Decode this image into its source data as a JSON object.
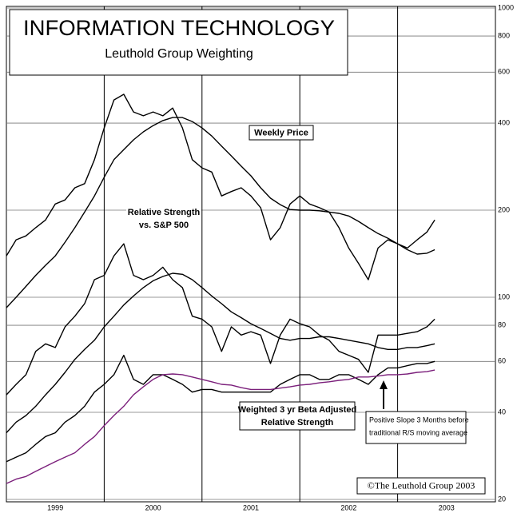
{
  "chart_data": {
    "type": "line",
    "title": "INFORMATION TECHNOLOGY",
    "subtitle": "Leuthold Group Weighting",
    "annotations": [
      {
        "lines": [
          "Weekly Price"
        ]
      },
      {
        "lines": [
          "Relative Strength",
          "vs. S&P 500"
        ]
      },
      {
        "lines": [
          "Weighted 3 yr Beta Adjusted",
          "Relative Strength"
        ]
      },
      {
        "lines": [
          "Positive Slope 3 Months before",
          "traditional R/S moving average"
        ]
      },
      {
        "lines": [
          "©The Leuthold Group 2003"
        ]
      }
    ],
    "log_scale": true,
    "grid": true,
    "xlim": [
      1999,
      2004
    ],
    "xticks": [
      2000,
      2001,
      2002,
      2003
    ],
    "year_labels": [
      "1999",
      "2000",
      "2001",
      "2002",
      "2003"
    ],
    "ylim": [
      20,
      1000
    ],
    "yticks": [
      20,
      40,
      60,
      80,
      100,
      200,
      400,
      600,
      800,
      1000
    ],
    "x": [
      1999.0,
      1999.1,
      1999.2,
      1999.3,
      1999.4,
      1999.5,
      1999.6,
      1999.7,
      1999.8,
      1999.9,
      2000.0,
      2000.1,
      2000.2,
      2000.3,
      2000.4,
      2000.5,
      2000.6,
      2000.7,
      2000.8,
      2000.9,
      2001.0,
      2001.1,
      2001.2,
      2001.3,
      2001.4,
      2001.5,
      2001.6,
      2001.7,
      2001.8,
      2001.9,
      2002.0,
      2002.1,
      2002.2,
      2002.3,
      2002.4,
      2002.5,
      2002.6,
      2002.7,
      2002.8,
      2002.9,
      2003.0,
      2003.1,
      2003.2,
      2003.3,
      2003.38
    ],
    "series": [
      {
        "color": "#000000",
        "values": [
          139,
          158,
          163,
          174,
          185,
          210,
          217,
          239,
          247,
          299,
          385,
          481,
          503,
          437,
          424,
          437,
          424,
          451,
          385,
          299,
          280,
          271,
          224,
          232,
          239,
          224,
          204,
          158,
          174,
          210,
          224,
          210,
          204,
          197,
          174,
          148,
          131,
          115,
          148,
          158,
          153,
          148,
          158,
          168,
          185
        ]
      },
      {
        "color": "#000000",
        "values": [
          92,
          100,
          109,
          119,
          129,
          139,
          155,
          174,
          197,
          224,
          260,
          299,
          324,
          350,
          373,
          392,
          408,
          418,
          418,
          405,
          385,
          361,
          333,
          308,
          284,
          263,
          239,
          220,
          209,
          201,
          200,
          200,
          199,
          197,
          195,
          191,
          183,
          174,
          166,
          160,
          153,
          146,
          141,
          142,
          146
        ]
      },
      {
        "color": "#000000",
        "values": [
          46,
          50,
          54,
          65,
          69,
          67,
          79,
          86,
          95,
          115,
          119,
          139,
          153,
          119,
          115,
          119,
          127,
          115,
          108,
          86,
          84,
          79,
          65,
          79,
          74,
          76,
          74,
          59,
          74,
          84,
          81,
          79,
          74,
          71,
          65,
          63,
          61,
          55,
          74,
          74,
          74,
          75,
          76,
          79,
          84
        ]
      },
      {
        "color": "#000000",
        "values": [
          34,
          37,
          39,
          42,
          46,
          50,
          55,
          61,
          66,
          71,
          79,
          86,
          94,
          101,
          108,
          114,
          118,
          121,
          120,
          115,
          108,
          101,
          95,
          89,
          85,
          81,
          78,
          75,
          72,
          71,
          72,
          72,
          73,
          73,
          72,
          71,
          70,
          69,
          67,
          66,
          66,
          67,
          67,
          68,
          69
        ]
      },
      {
        "color": "#000000",
        "values": [
          27,
          28,
          29,
          31,
          33,
          34,
          37,
          39,
          42,
          47,
          50,
          54,
          63,
          52,
          50,
          54,
          54,
          52,
          50,
          47,
          48,
          48,
          47,
          47,
          47,
          47,
          47,
          47,
          50,
          52,
          54,
          54,
          52,
          52,
          54,
          54,
          52,
          50,
          54,
          57,
          57,
          58,
          59,
          59,
          60
        ]
      },
      {
        "color": "#7b1f7b",
        "values": [
          22.7,
          23.5,
          24,
          25,
          26,
          27,
          28,
          29,
          31,
          33,
          36,
          39,
          42,
          46,
          49,
          52,
          54,
          54.3,
          54,
          53,
          52,
          51,
          50,
          49.7,
          48.7,
          48,
          48,
          48,
          48.5,
          49,
          49.7,
          50,
          50.6,
          51,
          51.6,
          52,
          53,
          53,
          53.4,
          54,
          54,
          54.3,
          55,
          55.3,
          56
        ]
      }
    ]
  }
}
